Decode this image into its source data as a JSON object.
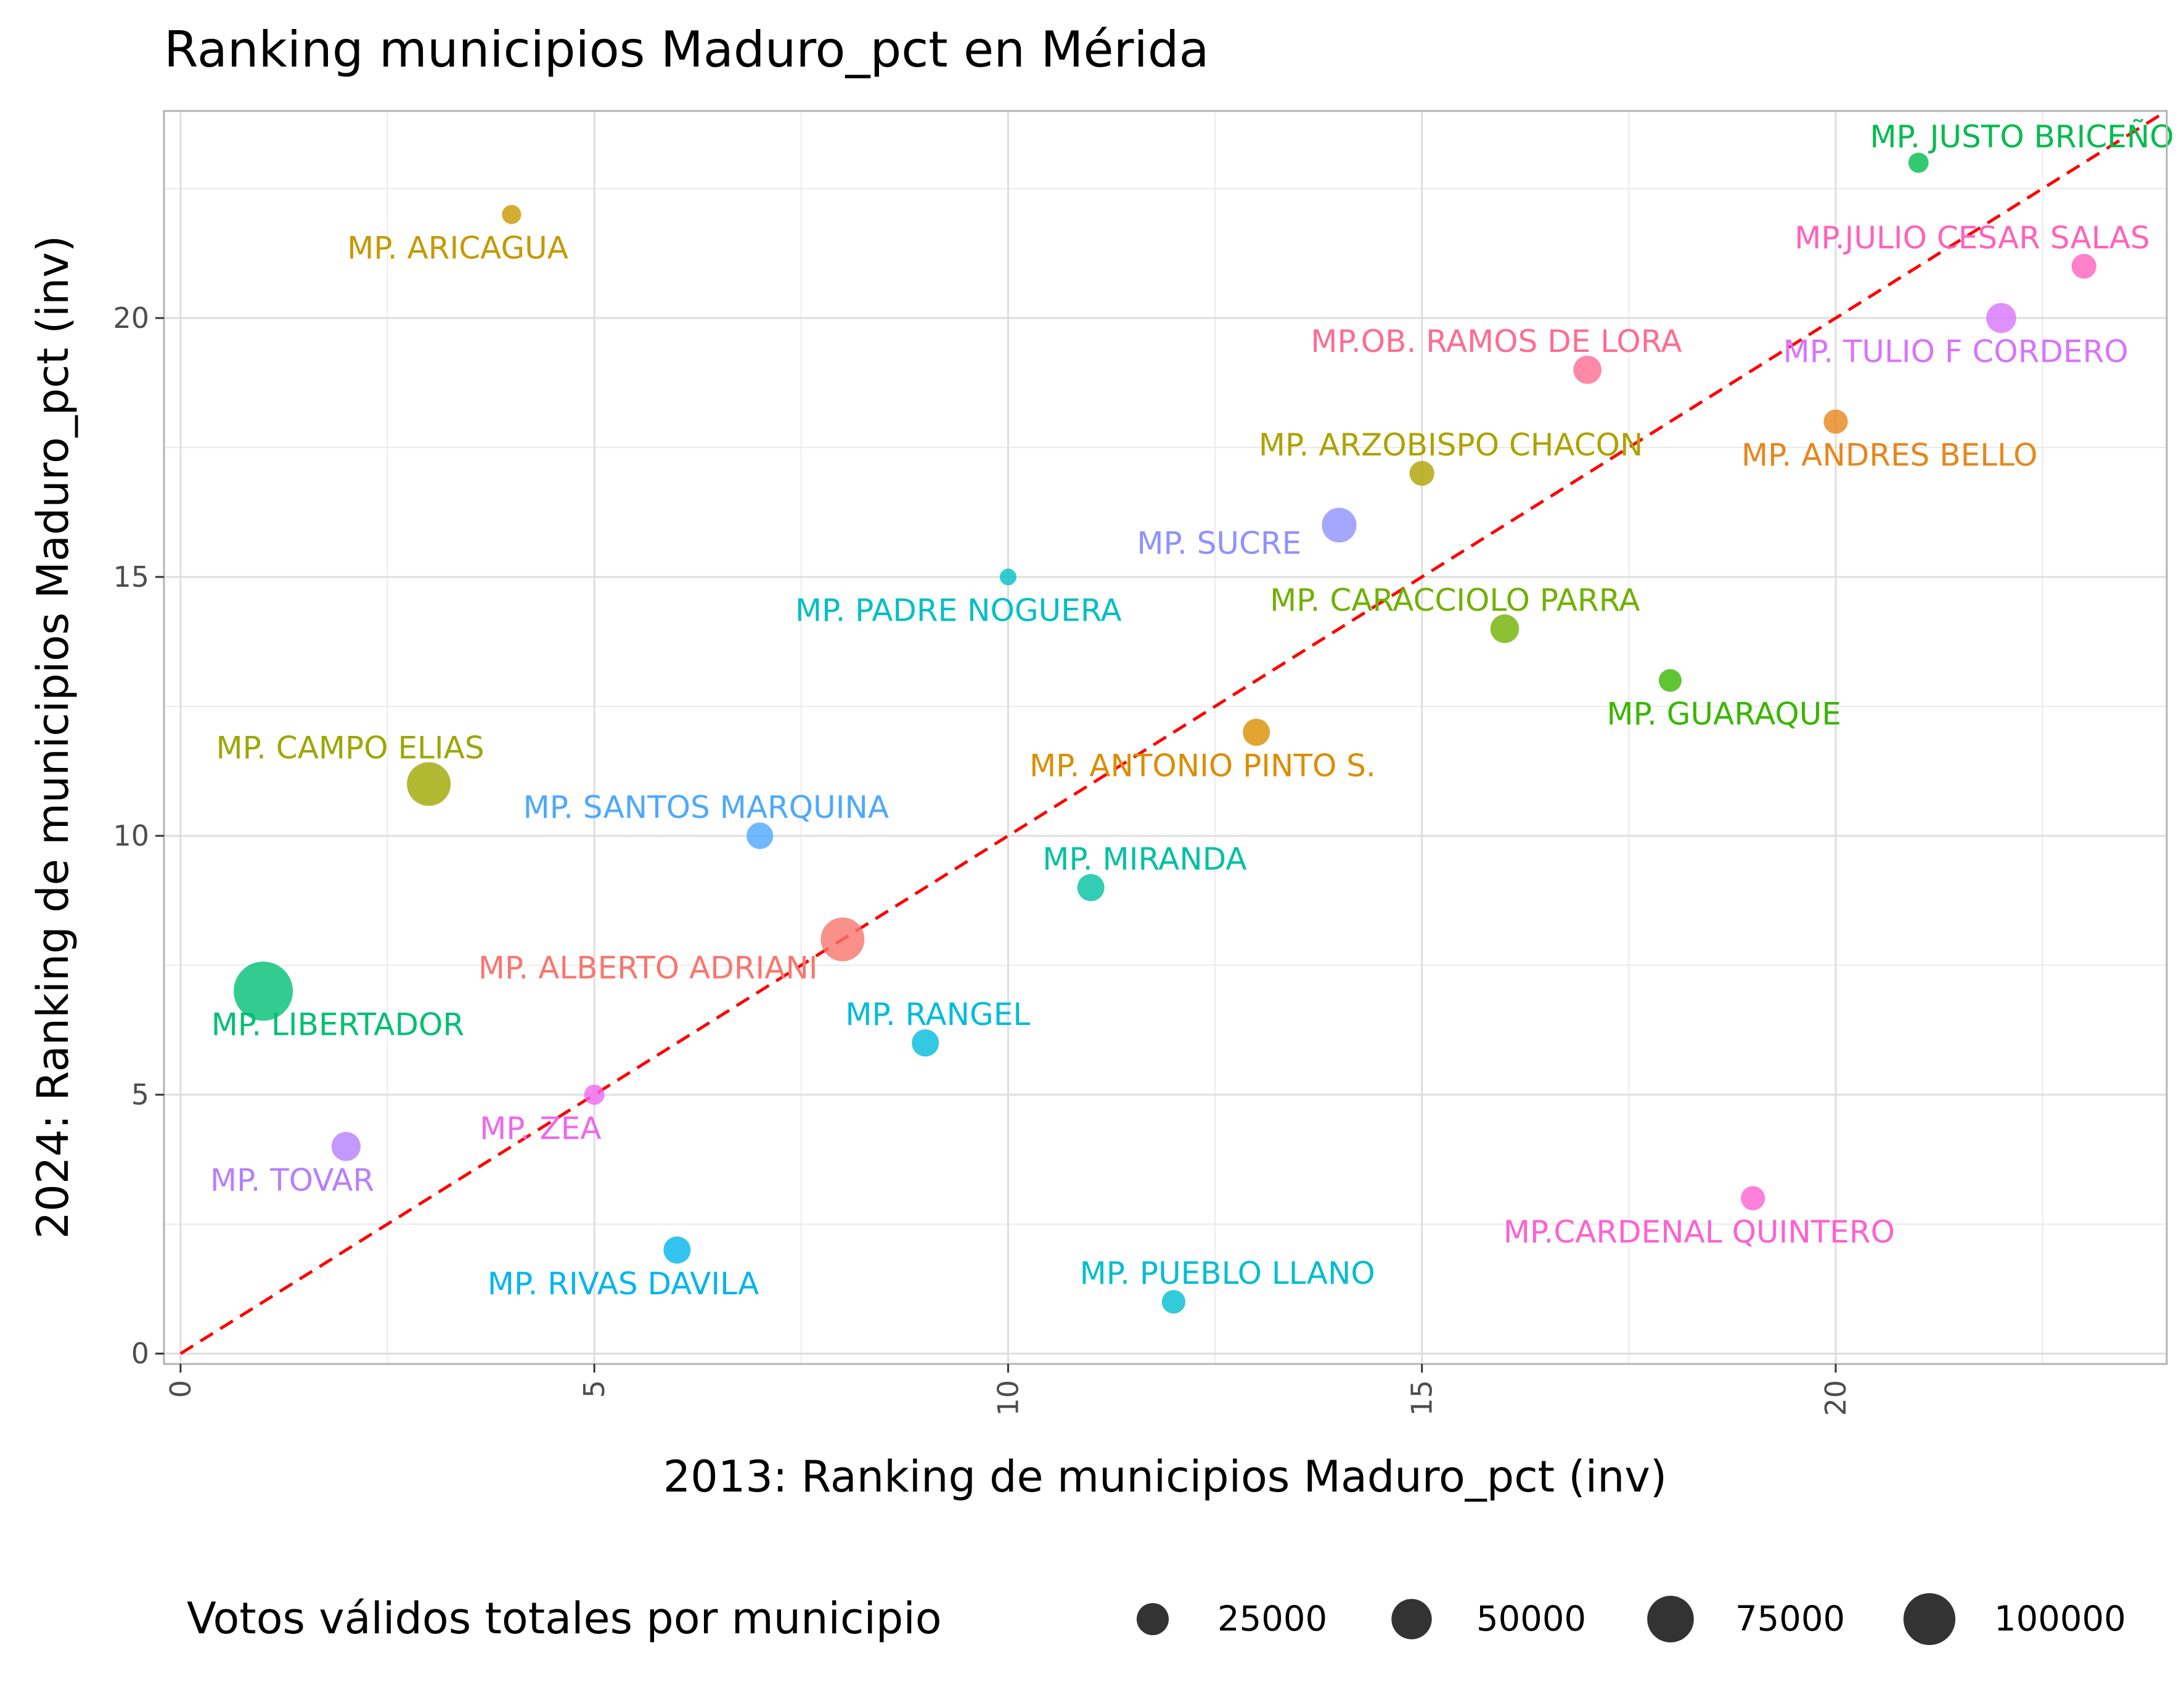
{
  "chart_data": {
    "type": "scatter",
    "title": "Ranking municipios Maduro_pct en Mérida",
    "xlabel": "2013: Ranking de municipios Maduro_pct (inv)",
    "ylabel": "2024: Ranking de municipios Maduro_pct (inv)",
    "xlim": [
      -0.2,
      24.0
    ],
    "ylim": [
      -0.2,
      24.0
    ],
    "xticks": [
      "0",
      "5",
      "10",
      "15",
      "20"
    ],
    "yticks": [
      "0",
      "5",
      "10",
      "15",
      "20"
    ],
    "grid": true,
    "reference_line": {
      "type": "y = x",
      "color": "#ff0000",
      "style": "dashed"
    },
    "legend": {
      "title": "Votos válidos totales por municipio",
      "placement": "bottom",
      "entries": [
        "25000",
        "50000",
        "75000",
        "100000"
      ],
      "values": [
        25000,
        50000,
        75000,
        100000
      ]
    },
    "points": [
      {
        "name": "MP. ALBERTO ADRIANI",
        "x": 8,
        "y": 8,
        "votes": 63000,
        "color": "#F8766D"
      },
      {
        "name": "MP. ANDRES BELLO",
        "x": 20,
        "y": 18,
        "votes": 9000,
        "color": "#E7861B"
      },
      {
        "name": "MP. ANTONIO PINTO S.",
        "x": 13,
        "y": 12,
        "votes": 14000,
        "color": "#DB8E00"
      },
      {
        "name": "MP. ARICAGUA",
        "x": 4,
        "y": 22,
        "votes": 3000,
        "color": "#C59900"
      },
      {
        "name": "MP. ARZOBISPO CHACON",
        "x": 15,
        "y": 17,
        "votes": 10000,
        "color": "#AEA200"
      },
      {
        "name": "MP. CAMPO ELIAS",
        "x": 3,
        "y": 11,
        "votes": 63000,
        "color": "#9DA700"
      },
      {
        "name": "MP. CARACCIOLO PARRA",
        "x": 16,
        "y": 14,
        "votes": 17000,
        "color": "#72B000"
      },
      {
        "name": "MP. GUARAQUE",
        "x": 18,
        "y": 13,
        "votes": 7000,
        "color": "#39B600"
      },
      {
        "name": "MP. JUSTO BRICEÑO",
        "x": 21,
        "y": 23,
        "votes": 4000,
        "color": "#00BB4E"
      },
      {
        "name": "MP. LIBERTADOR",
        "x": 1,
        "y": 7,
        "votes": 140000,
        "color": "#00BF74"
      },
      {
        "name": "MP. MIRANDA",
        "x": 11,
        "y": 9,
        "votes": 14000,
        "color": "#00C0A3"
      },
      {
        "name": "MP. PADRE NOGUERA",
        "x": 10,
        "y": 15,
        "votes": 1200,
        "color": "#00BFC4"
      },
      {
        "name": "MP. PUEBLO LLANO",
        "x": 12,
        "y": 1,
        "votes": 8000,
        "color": "#00BDD0"
      },
      {
        "name": "MP. RANGEL",
        "x": 9,
        "y": 6,
        "votes": 14000,
        "color": "#00BBDB"
      },
      {
        "name": "MP. RIVAS DAVILA",
        "x": 6,
        "y": 2,
        "votes": 14000,
        "color": "#00B5EE"
      },
      {
        "name": "MP. SANTOS MARQUINA",
        "x": 7,
        "y": 10,
        "votes": 13000,
        "color": "#4EA8FF"
      },
      {
        "name": "MP. SUCRE",
        "x": 14,
        "y": 16,
        "votes": 32000,
        "color": "#8F91FF"
      },
      {
        "name": "MP. TOVAR",
        "x": 2,
        "y": 4,
        "votes": 18000,
        "color": "#B580FF"
      },
      {
        "name": "MP. TULIO F CORDERO",
        "x": 22,
        "y": 20,
        "votes": 20000,
        "color": "#D874FD"
      },
      {
        "name": "MP. ZEA",
        "x": 5,
        "y": 5,
        "votes": 4000,
        "color": "#EF67EB"
      },
      {
        "name": "MP.CARDENAL QUINTERO",
        "x": 19,
        "y": 3,
        "votes": 9000,
        "color": "#FD61D1"
      },
      {
        "name": "MP.JULIO CESAR SALAS",
        "x": 23,
        "y": 21,
        "votes": 10000,
        "color": "#FF62BC"
      },
      {
        "name": "MP.OB. RAMOS DE LORA",
        "x": 17,
        "y": 19,
        "votes": 16000,
        "color": "#FF6C91"
      }
    ]
  }
}
